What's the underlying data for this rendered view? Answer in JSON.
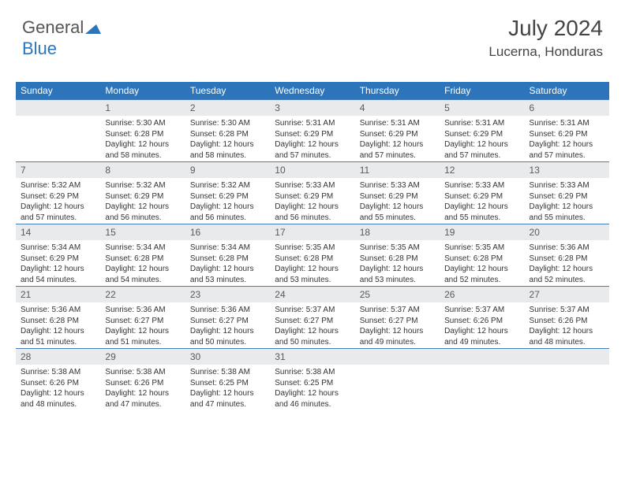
{
  "logo": {
    "part1": "General",
    "part2": "Blue"
  },
  "header": {
    "month": "July 2024",
    "location": "Lucerna, Honduras"
  },
  "colors": {
    "header_bg": "#2d75bb",
    "header_text": "#ffffff",
    "daynum_bg": "#e9eaec",
    "cell_border": "#4a7db8",
    "text": "#333333"
  },
  "dayNames": [
    "Sunday",
    "Monday",
    "Tuesday",
    "Wednesday",
    "Thursday",
    "Friday",
    "Saturday"
  ],
  "firstDayOffset": 1,
  "daysInMonth": 31,
  "days": {
    "1": {
      "sunrise": "5:30 AM",
      "sunset": "6:28 PM",
      "daylight": "12 hours and 58 minutes."
    },
    "2": {
      "sunrise": "5:30 AM",
      "sunset": "6:28 PM",
      "daylight": "12 hours and 58 minutes."
    },
    "3": {
      "sunrise": "5:31 AM",
      "sunset": "6:29 PM",
      "daylight": "12 hours and 57 minutes."
    },
    "4": {
      "sunrise": "5:31 AM",
      "sunset": "6:29 PM",
      "daylight": "12 hours and 57 minutes."
    },
    "5": {
      "sunrise": "5:31 AM",
      "sunset": "6:29 PM",
      "daylight": "12 hours and 57 minutes."
    },
    "6": {
      "sunrise": "5:31 AM",
      "sunset": "6:29 PM",
      "daylight": "12 hours and 57 minutes."
    },
    "7": {
      "sunrise": "5:32 AM",
      "sunset": "6:29 PM",
      "daylight": "12 hours and 57 minutes."
    },
    "8": {
      "sunrise": "5:32 AM",
      "sunset": "6:29 PM",
      "daylight": "12 hours and 56 minutes."
    },
    "9": {
      "sunrise": "5:32 AM",
      "sunset": "6:29 PM",
      "daylight": "12 hours and 56 minutes."
    },
    "10": {
      "sunrise": "5:33 AM",
      "sunset": "6:29 PM",
      "daylight": "12 hours and 56 minutes."
    },
    "11": {
      "sunrise": "5:33 AM",
      "sunset": "6:29 PM",
      "daylight": "12 hours and 55 minutes."
    },
    "12": {
      "sunrise": "5:33 AM",
      "sunset": "6:29 PM",
      "daylight": "12 hours and 55 minutes."
    },
    "13": {
      "sunrise": "5:33 AM",
      "sunset": "6:29 PM",
      "daylight": "12 hours and 55 minutes."
    },
    "14": {
      "sunrise": "5:34 AM",
      "sunset": "6:29 PM",
      "daylight": "12 hours and 54 minutes."
    },
    "15": {
      "sunrise": "5:34 AM",
      "sunset": "6:28 PM",
      "daylight": "12 hours and 54 minutes."
    },
    "16": {
      "sunrise": "5:34 AM",
      "sunset": "6:28 PM",
      "daylight": "12 hours and 53 minutes."
    },
    "17": {
      "sunrise": "5:35 AM",
      "sunset": "6:28 PM",
      "daylight": "12 hours and 53 minutes."
    },
    "18": {
      "sunrise": "5:35 AM",
      "sunset": "6:28 PM",
      "daylight": "12 hours and 53 minutes."
    },
    "19": {
      "sunrise": "5:35 AM",
      "sunset": "6:28 PM",
      "daylight": "12 hours and 52 minutes."
    },
    "20": {
      "sunrise": "5:36 AM",
      "sunset": "6:28 PM",
      "daylight": "12 hours and 52 minutes."
    },
    "21": {
      "sunrise": "5:36 AM",
      "sunset": "6:28 PM",
      "daylight": "12 hours and 51 minutes."
    },
    "22": {
      "sunrise": "5:36 AM",
      "sunset": "6:27 PM",
      "daylight": "12 hours and 51 minutes."
    },
    "23": {
      "sunrise": "5:36 AM",
      "sunset": "6:27 PM",
      "daylight": "12 hours and 50 minutes."
    },
    "24": {
      "sunrise": "5:37 AM",
      "sunset": "6:27 PM",
      "daylight": "12 hours and 50 minutes."
    },
    "25": {
      "sunrise": "5:37 AM",
      "sunset": "6:27 PM",
      "daylight": "12 hours and 49 minutes."
    },
    "26": {
      "sunrise": "5:37 AM",
      "sunset": "6:26 PM",
      "daylight": "12 hours and 49 minutes."
    },
    "27": {
      "sunrise": "5:37 AM",
      "sunset": "6:26 PM",
      "daylight": "12 hours and 48 minutes."
    },
    "28": {
      "sunrise": "5:38 AM",
      "sunset": "6:26 PM",
      "daylight": "12 hours and 48 minutes."
    },
    "29": {
      "sunrise": "5:38 AM",
      "sunset": "6:26 PM",
      "daylight": "12 hours and 47 minutes."
    },
    "30": {
      "sunrise": "5:38 AM",
      "sunset": "6:25 PM",
      "daylight": "12 hours and 47 minutes."
    },
    "31": {
      "sunrise": "5:38 AM",
      "sunset": "6:25 PM",
      "daylight": "12 hours and 46 minutes."
    }
  },
  "labels": {
    "sunrise": "Sunrise:",
    "sunset": "Sunset:",
    "daylight": "Daylight:"
  }
}
